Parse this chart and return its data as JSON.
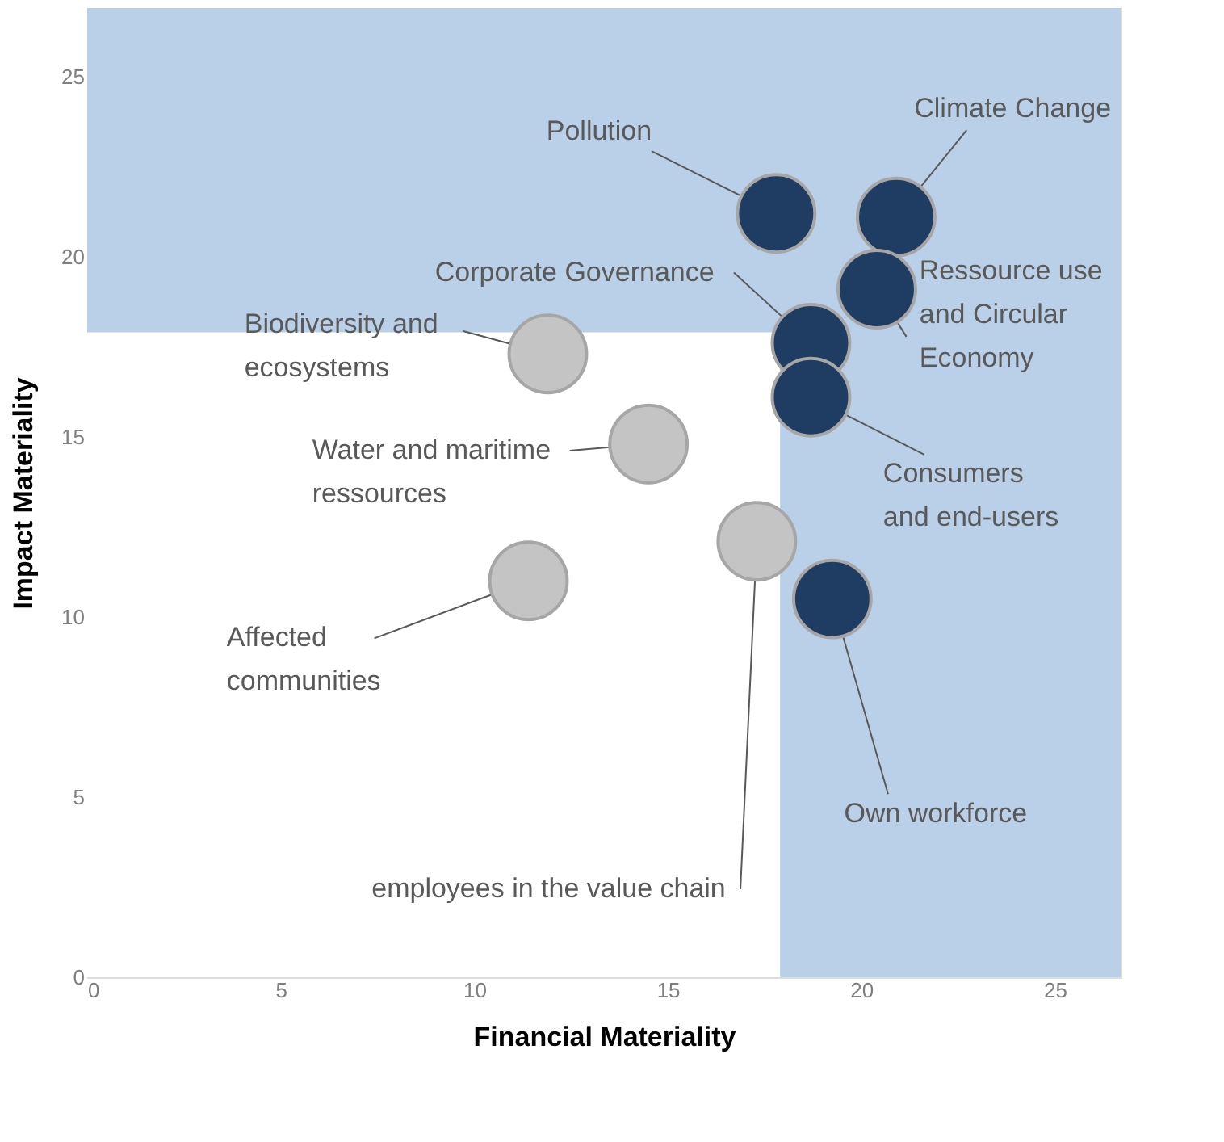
{
  "chart_data": {
    "type": "scatter",
    "xlabel": "Financial Materiality",
    "ylabel": "Impact Materiality",
    "xlim": [
      0,
      26.7
    ],
    "ylim": [
      0,
      26.9
    ],
    "xticks": [
      0,
      5,
      10,
      15,
      20,
      25
    ],
    "yticks": [
      0,
      5,
      10,
      15,
      20,
      25
    ],
    "marker": "circle",
    "bands": [
      {
        "axis": "y",
        "from": 17.9,
        "to": 26.9,
        "color": "#b9d0e8"
      },
      {
        "axis": "x",
        "from": 17.9,
        "to": 26.7,
        "color": "#b9d0e8"
      }
    ],
    "series": [
      {
        "color": "#1f3c63",
        "x": [
          17.8,
          20.9,
          20.4,
          18.7,
          18.7,
          19.25
        ],
        "values": [
          21.2,
          21.1,
          19.1,
          17.6,
          16.1,
          10.5
        ],
        "value_labels": [
          "Pollution",
          "Climate Change",
          "Ressource use and Circular Economy",
          "Corporate Governance",
          "Consumers and end-users",
          "Own workforce"
        ]
      },
      {
        "color": "#c4c4c4",
        "x": [
          11.9,
          14.5,
          17.3,
          11.4
        ],
        "values": [
          17.3,
          14.8,
          12.1,
          11.0
        ],
        "value_labels": [
          "Biodiversity and ecosystems",
          "Water and maritime ressources",
          "employees in the value chain",
          "Affected communities"
        ]
      }
    ]
  }
}
